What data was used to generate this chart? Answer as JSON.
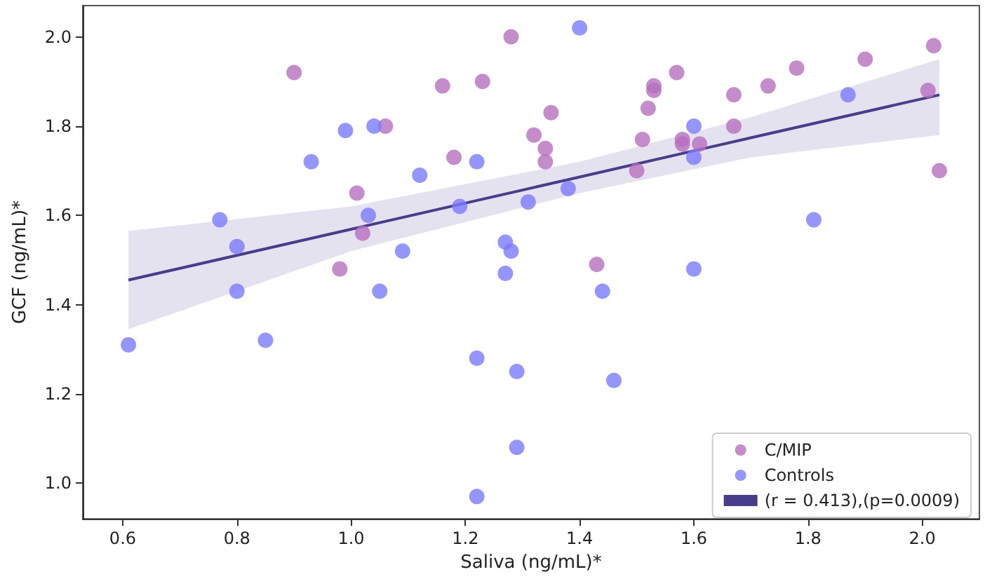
{
  "chart_data": {
    "type": "scatter",
    "xlabel": "Saliva (ng/mL)*",
    "ylabel": "GCF (ng/mL)*",
    "xlim": [
      0.53,
      2.1
    ],
    "ylim": [
      0.92,
      2.07
    ],
    "xticks": [
      0.6,
      0.8,
      {
        "value": 1,
        "label": "1.0"
      },
      1.2,
      1.4,
      1.6,
      1.8,
      {
        "value": 2,
        "label": "2.0"
      }
    ],
    "yticks": [
      {
        "value": 1,
        "label": "1.0"
      },
      1.2,
      1.4,
      1.6,
      1.8,
      {
        "value": 2,
        "label": "2.0"
      }
    ],
    "grid": false,
    "legend": "bottom right",
    "series": [
      {
        "name": "C/MIP",
        "color": "#b76fbf",
        "marker": "circle",
        "x": [
          0.9,
          0.98,
          1.01,
          1.02,
          1.06,
          1.16,
          1.18,
          1.23,
          1.28,
          1.32,
          1.34,
          1.34,
          1.35,
          1.43,
          1.5,
          1.51,
          1.52,
          1.53,
          1.53,
          1.57,
          1.58,
          1.58,
          1.61,
          1.67,
          1.67,
          1.73,
          1.78,
          1.9,
          2.02,
          2.01,
          2.03
        ],
        "values": [
          1.92,
          1.48,
          1.65,
          1.56,
          1.8,
          1.89,
          1.73,
          1.9,
          2.0,
          1.78,
          1.75,
          1.72,
          1.83,
          1.49,
          1.7,
          1.77,
          1.84,
          1.89,
          1.88,
          1.92,
          1.77,
          1.76,
          1.76,
          1.87,
          1.8,
          1.89,
          1.93,
          1.95,
          1.98,
          1.88,
          1.7
        ]
      },
      {
        "name": "Controls",
        "color": "#7b7bff",
        "marker": "circle",
        "x": [
          0.61,
          0.77,
          0.8,
          0.8,
          0.85,
          0.93,
          0.99,
          1.03,
          1.04,
          1.05,
          1.09,
          1.12,
          1.19,
          1.22,
          1.22,
          1.22,
          1.27,
          1.27,
          1.28,
          1.29,
          1.29,
          1.31,
          1.38,
          1.4,
          1.44,
          1.46,
          1.6,
          1.6,
          1.6,
          1.81,
          1.87
        ],
        "values": [
          1.31,
          1.59,
          1.53,
          1.43,
          1.32,
          1.72,
          1.79,
          1.6,
          1.8,
          1.43,
          1.52,
          1.69,
          1.62,
          1.72,
          1.28,
          0.97,
          1.54,
          1.47,
          1.52,
          1.25,
          1.08,
          1.63,
          1.66,
          2.02,
          1.43,
          1.23,
          1.8,
          1.73,
          1.48,
          1.59,
          1.87
        ]
      },
      {
        "name": "(r = 0.413),(p=0.0009)",
        "type": "line",
        "color": "#483d8b",
        "marker": "none",
        "x": [
          0.61,
          1.0,
          1.4,
          1.7,
          2.03
        ],
        "values": [
          1.455,
          1.569,
          1.686,
          1.774,
          1.87
        ],
        "lower": [
          1.345,
          1.52,
          1.65,
          1.73,
          1.78
        ],
        "upper": [
          1.565,
          1.62,
          1.72,
          1.82,
          1.95
        ]
      }
    ]
  }
}
